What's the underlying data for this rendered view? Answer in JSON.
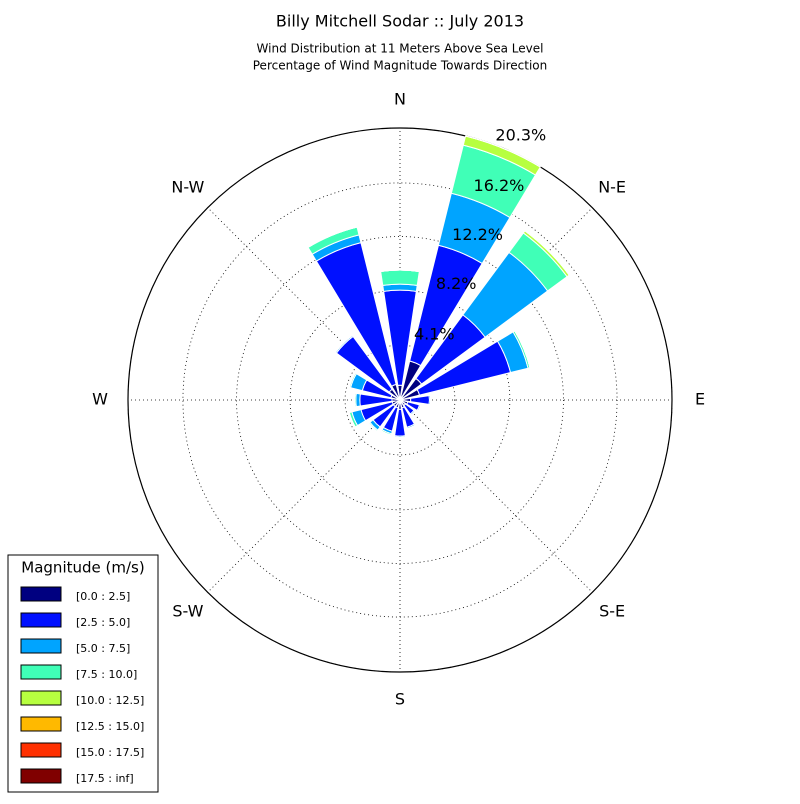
{
  "chart_data": {
    "type": "windrose",
    "title": "Billy Mitchell Sodar :: July 2013",
    "subtitle": [
      "Wind Distribution at 11 Meters Above Sea Level",
      "Percentage of Wind Magnitude Towards Direction"
    ],
    "categories": [
      "N",
      null,
      "N-E",
      null,
      "E",
      null,
      "S-E",
      null,
      "S",
      null,
      "S-W",
      null,
      "W",
      null,
      "N-W",
      null
    ],
    "series": [
      {
        "name": "[0.0 : 2.5]",
        "color": "#000080",
        "values": [
          1.1,
          3.0,
          2.0,
          1.5,
          0.8,
          0.6,
          0.5,
          0.6,
          0.7,
          0.6,
          0.6,
          0.6,
          0.6,
          0.7,
          1.0,
          1.2
        ]
      },
      {
        "name": "[2.5 : 5.0]",
        "color": "#0010ff",
        "values": [
          7.1,
          8.9,
          5.9,
          7.0,
          1.4,
          0.9,
          0.8,
          1.5,
          2.0,
          1.8,
          1.9,
          2.4,
          2.4,
          2.2,
          4.9,
          10.9
        ]
      },
      {
        "name": "[5.0 : 7.5]",
        "color": "#00a4ff",
        "values": [
          0.45,
          4.0,
          5.8,
          1.35,
          0.1,
          0.1,
          0.1,
          0.1,
          0.1,
          0.2,
          0.3,
          0.7,
          0.3,
          0.9,
          0.1,
          0.6
        ]
      },
      {
        "name": "[7.5 : 10.0]",
        "color": "#40ffb7",
        "values": [
          1.05,
          3.7,
          1.8,
          0.15,
          0,
          0,
          0,
          0,
          0,
          0.1,
          0.1,
          0.2,
          0.1,
          0.1,
          0,
          0.6
        ]
      },
      {
        "name": "[10.0 : 12.5]",
        "color": "#b7ff40",
        "values": [
          0,
          0.7,
          0.2,
          0,
          0,
          0,
          0,
          0,
          0,
          0,
          0,
          0,
          0,
          0,
          0,
          0
        ]
      },
      {
        "name": "[12.5 : 15.0]",
        "color": "#ffb900",
        "values": [
          0,
          0,
          0,
          0,
          0,
          0,
          0,
          0,
          0,
          0,
          0,
          0,
          0,
          0,
          0,
          0
        ]
      },
      {
        "name": "[15.0 : 17.5]",
        "color": "#ff3000",
        "values": [
          0,
          0,
          0,
          0,
          0,
          0,
          0,
          0,
          0,
          0,
          0,
          0,
          0,
          0,
          0,
          0
        ]
      },
      {
        "name": "[17.5 : inf]",
        "color": "#800000",
        "values": [
          0,
          0,
          0,
          0,
          0,
          0,
          0,
          0,
          0,
          0,
          0,
          0,
          0,
          0,
          0,
          0
        ]
      }
    ],
    "ylim": [
      0,
      20.3
    ],
    "yticks": [
      {
        "value": 4.1,
        "label": "4.1%"
      },
      {
        "value": 8.2,
        "label": "8.2%"
      },
      {
        "value": 12.2,
        "label": "12.2%"
      },
      {
        "value": 16.2,
        "label": "16.2%"
      },
      {
        "value": 20.3,
        "label": "20.3%"
      }
    ],
    "grid": true,
    "legend_title": "Magnitude (m/s)",
    "legend_position": "lower-left"
  }
}
